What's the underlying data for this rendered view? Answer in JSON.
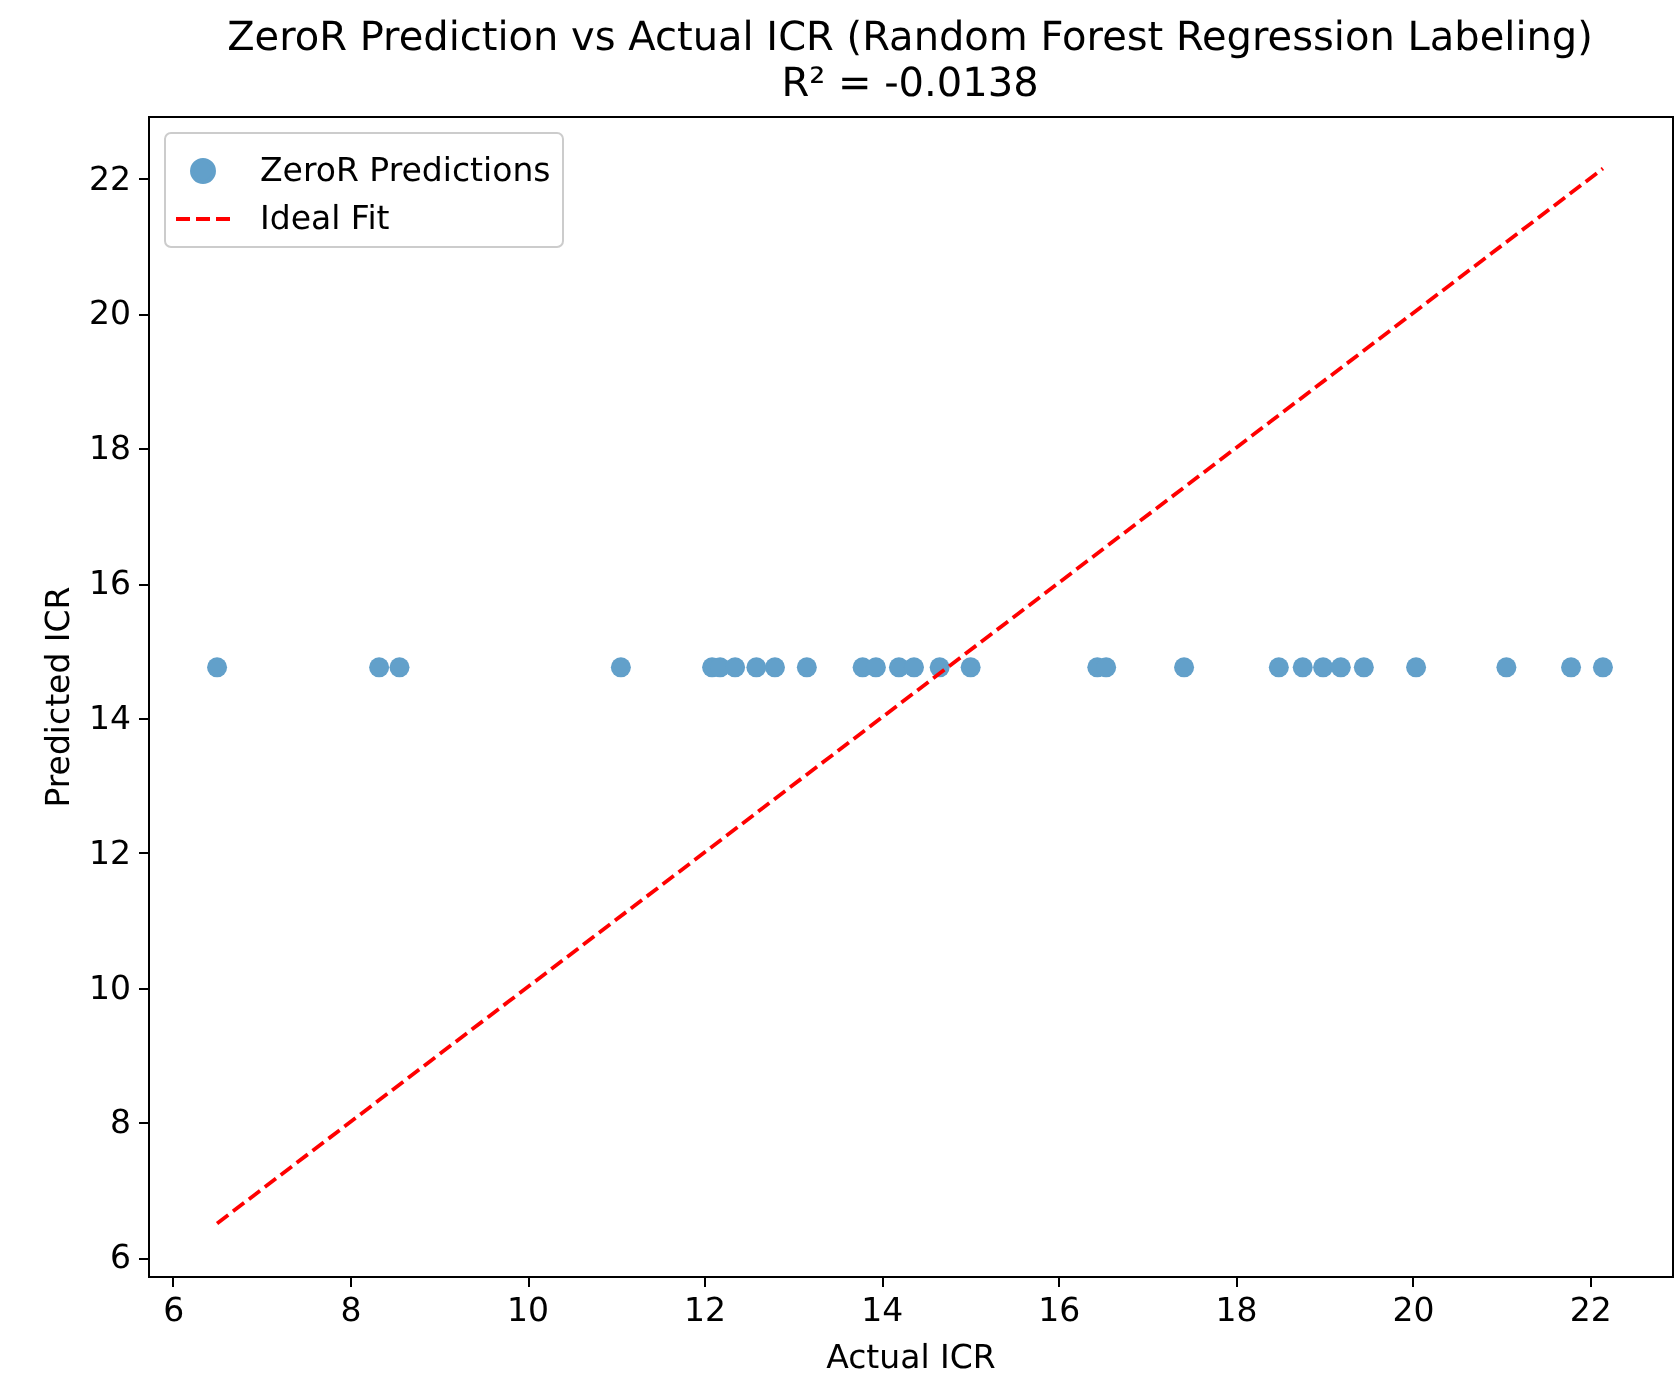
{
  "chart_data": {
    "type": "scatter",
    "title": "ZeroR Prediction vs Actual ICR (Random Forest Regression Labeling)",
    "subtitle": "R² = -0.0138",
    "xlabel": "Actual ICR",
    "ylabel": "Predicted ICR",
    "xlim": [
      5.72,
      22.93
    ],
    "ylim": [
      5.72,
      22.93
    ],
    "xticks": [
      6,
      8,
      10,
      12,
      14,
      16,
      18,
      20,
      22
    ],
    "yticks": [
      6,
      8,
      10,
      12,
      14,
      16,
      18,
      20,
      22
    ],
    "legend": "top left",
    "series": [
      {
        "name": "ZeroR Predictions",
        "marker": "circle",
        "color": "#62a0ca",
        "x": [
          6.5,
          8.33,
          8.56,
          11.06,
          12.09,
          12.18,
          12.35,
          12.59,
          12.8,
          13.16,
          13.79,
          13.94,
          14.2,
          14.37,
          14.66,
          15.01,
          16.44,
          16.54,
          17.42,
          18.49,
          18.76,
          18.99,
          19.19,
          19.45,
          20.04,
          21.06,
          21.79,
          22.15
        ],
        "values": [
          14.75,
          14.75,
          14.75,
          14.75,
          14.75,
          14.75,
          14.75,
          14.75,
          14.75,
          14.75,
          14.75,
          14.75,
          14.75,
          14.75,
          14.75,
          14.75,
          14.75,
          14.75,
          14.75,
          14.75,
          14.75,
          14.75,
          14.75,
          14.75,
          14.75,
          14.75,
          14.75,
          14.75
        ]
      },
      {
        "name": "Ideal Fit",
        "type": "line",
        "line_style": "dashed",
        "color": "#ff0000",
        "x": [
          6.5,
          22.15
        ],
        "values": [
          6.5,
          22.15
        ]
      }
    ]
  }
}
